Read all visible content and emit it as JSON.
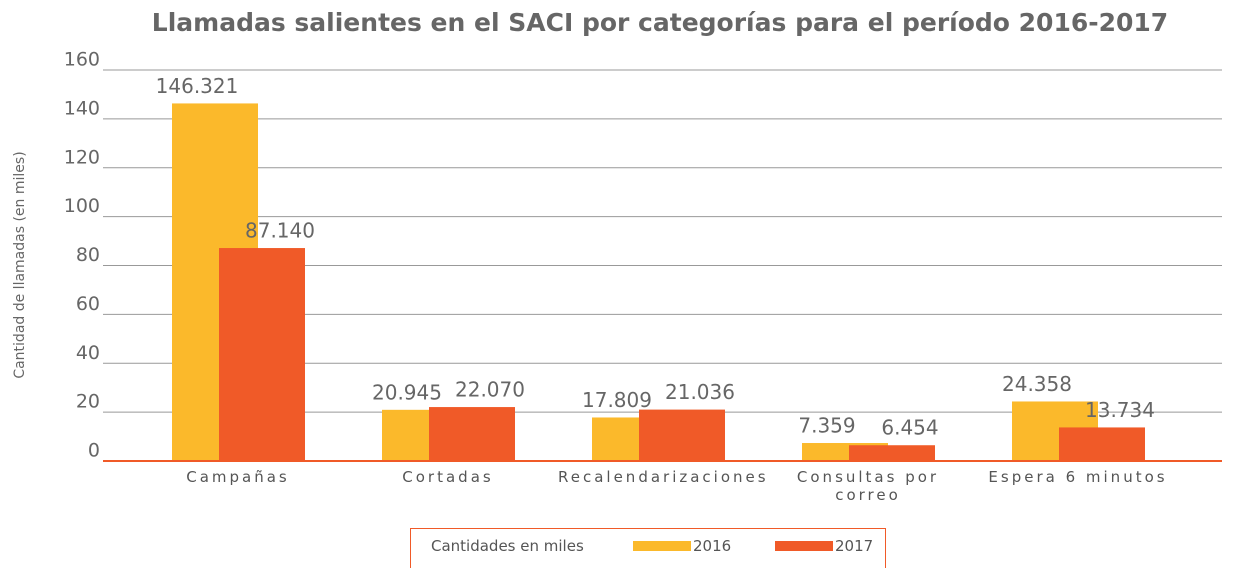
{
  "chart_data": {
    "type": "bar",
    "title": "Llamadas salientes en el SACI por categorías para el período 2016-2017",
    "y_label": "Cantidad de llamadas (en miles)",
    "legend_title": "Cantidades en miles",
    "categories": [
      "Campañas",
      "Cortadas",
      "Recalendarizaciones",
      "Consultas por correo",
      "Espera 6 minutos"
    ],
    "series": [
      {
        "name": "2016",
        "color": "#fbb92b",
        "values": [
          146.321,
          20.945,
          17.809,
          7.359,
          24.358
        ],
        "value_labels": [
          "146.321",
          "20.945",
          "17.809",
          "7.359",
          "24.358"
        ]
      },
      {
        "name": "2017",
        "color": "#f05a28",
        "values": [
          87.14,
          22.07,
          21.036,
          6.454,
          13.734
        ],
        "value_labels": [
          "87.140",
          "22.070",
          "21.036",
          "6.454",
          "13.734"
        ]
      }
    ],
    "ylim": [
      0,
      160
    ],
    "yticks": [
      0,
      20,
      40,
      60,
      80,
      100,
      120,
      140,
      160
    ],
    "grid": true,
    "legend": "bottom"
  }
}
